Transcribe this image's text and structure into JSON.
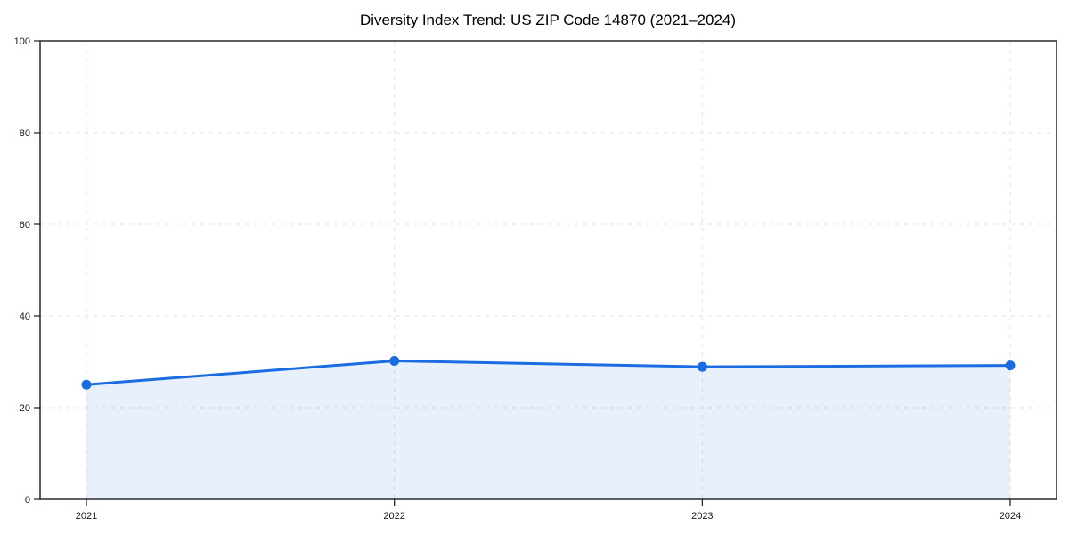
{
  "page": {
    "background": "#ffffff"
  },
  "chart_data": {
    "type": "area",
    "title": "Diversity Index Trend: US ZIP Code 14870 (2021–2024)",
    "x": [
      "2021",
      "2022",
      "2023",
      "2024"
    ],
    "series": [
      {
        "name": "Diversity Index",
        "values": [
          25.0,
          30.2,
          28.9,
          29.2
        ]
      }
    ],
    "xlabel": "",
    "ylabel": "",
    "ylim": [
      0,
      100
    ],
    "yticks": [
      0,
      20,
      40,
      60,
      80,
      100
    ],
    "grid": true,
    "grid_style": "dashed",
    "legend_position": "none",
    "markers": true,
    "colors": {
      "line": "#1b6ce1",
      "marker": "#1b6ce1",
      "fill": "#1b6ce1",
      "fill_opacity": 0.1,
      "grid": "#e0e0e0",
      "spine": "#1a1a1a",
      "tick_label": "#1a1a1a",
      "title": "#000000",
      "background": "#ffffff"
    }
  }
}
